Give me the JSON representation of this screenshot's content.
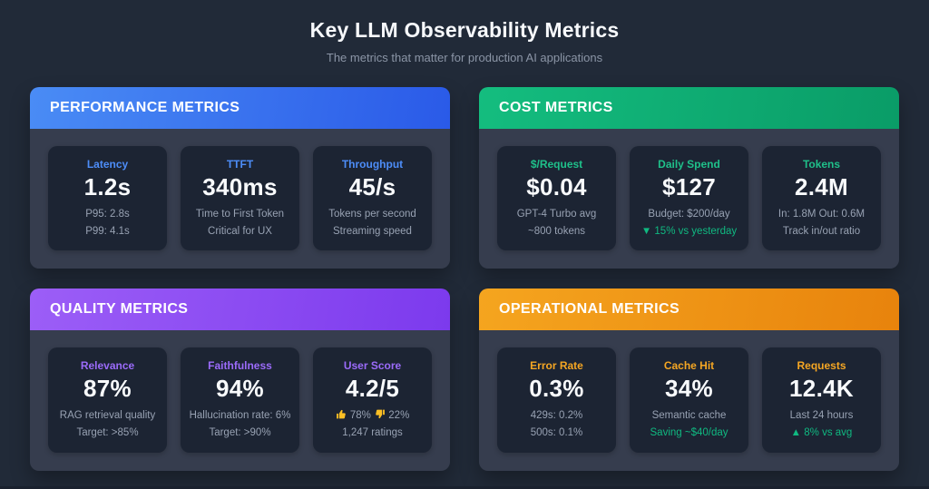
{
  "header": {
    "title": "Key LLM Observability Metrics",
    "subtitle": "The metrics that matter for production AI applications"
  },
  "colors": {
    "page_bg": "#212a38",
    "panel_body_bg": "#363d4e",
    "card_bg": "#1c2433",
    "value_color": "#f8fafc",
    "subtext_color": "#98a2b3",
    "green_accent": "#10b981",
    "thumb_icon_color": "#fbbf24"
  },
  "panels": [
    {
      "id": "performance",
      "title": "PERFORMANCE METRICS",
      "accent": "#4d8df8",
      "gradient": [
        "#4a8cf5",
        "#2a5ae8"
      ],
      "cards": [
        {
          "label": "Latency",
          "value": "1.2s",
          "lines": [
            {
              "text": "P95: 2.8s"
            },
            {
              "text": "P99: 4.1s"
            }
          ]
        },
        {
          "label": "TTFT",
          "value": "340ms",
          "lines": [
            {
              "text": "Time to First Token"
            },
            {
              "text": "Critical for UX"
            }
          ]
        },
        {
          "label": "Throughput",
          "value": "45/s",
          "lines": [
            {
              "text": "Tokens per second"
            },
            {
              "text": "Streaming speed"
            }
          ]
        }
      ]
    },
    {
      "id": "cost",
      "title": "COST METRICS",
      "accent": "#1fc08a",
      "gradient": [
        "#14bd7f",
        "#0a9c67"
      ],
      "cards": [
        {
          "label": "$/Request",
          "value": "$0.04",
          "lines": [
            {
              "text": "GPT-4 Turbo avg"
            },
            {
              "text": "~800 tokens"
            }
          ]
        },
        {
          "label": "Daily Spend",
          "value": "$127",
          "lines": [
            {
              "text": "Budget: $200/day"
            },
            {
              "text": "▼ 15% vs yesterday",
              "color": "green"
            }
          ]
        },
        {
          "label": "Tokens",
          "value": "2.4M",
          "lines": [
            {
              "text": "In: 1.8M Out: 0.6M"
            },
            {
              "text": "Track in/out ratio"
            }
          ]
        }
      ]
    },
    {
      "id": "quality",
      "title": "QUALITY METRICS",
      "accent": "#9b6bfa",
      "gradient": [
        "#9c5ef7",
        "#7c3aed"
      ],
      "cards": [
        {
          "label": "Relevance",
          "value": "87%",
          "lines": [
            {
              "text": "RAG retrieval quality"
            },
            {
              "text": "Target: >85%"
            }
          ]
        },
        {
          "label": "Faithfulness",
          "value": "94%",
          "lines": [
            {
              "text": "Hallucination rate: 6%"
            },
            {
              "text": "Target: >90%"
            }
          ]
        },
        {
          "label": "User Score",
          "value": "4.2/5",
          "lines": [
            {
              "text": "👍 78% 👎 22%"
            },
            {
              "text": "1,247 ratings"
            }
          ]
        }
      ]
    },
    {
      "id": "operational",
      "title": "OPERATIONAL METRICS",
      "accent": "#f5a623",
      "gradient": [
        "#f5a51f",
        "#e8830c"
      ],
      "cards": [
        {
          "label": "Error Rate",
          "value": "0.3%",
          "lines": [
            {
              "text": "429s: 0.2%"
            },
            {
              "text": "500s: 0.1%"
            }
          ]
        },
        {
          "label": "Cache Hit",
          "value": "34%",
          "lines": [
            {
              "text": "Semantic cache"
            },
            {
              "text": "Saving ~$40/day",
              "color": "green"
            }
          ]
        },
        {
          "label": "Requests",
          "value": "12.4K",
          "lines": [
            {
              "text": "Last 24 hours"
            },
            {
              "text": "▲ 8% vs avg",
              "color": "green"
            }
          ]
        }
      ]
    }
  ]
}
